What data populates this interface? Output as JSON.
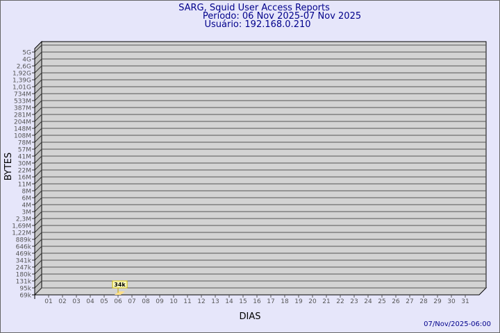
{
  "chart_data": {
    "type": "bar",
    "title": "SARG, Squid User Access Reports",
    "subtitle_period": "Período: 06 Nov 2025-07 Nov 2025",
    "subtitle_user": "Usuário: 192.168.0.210",
    "xlabel": "DIAS",
    "ylabel": "BYTES",
    "footer": "07/Nov/2025-06:00",
    "y_scale": "log",
    "y_ticks": [
      "5G",
      "4G",
      "2,6G",
      "1,92G",
      "1,39G",
      "1,01G",
      "734M",
      "533M",
      "387M",
      "281M",
      "204M",
      "148M",
      "108M",
      "78M",
      "57M",
      "41M",
      "30M",
      "22M",
      "16M",
      "11M",
      "8M",
      "6M",
      "4M",
      "3M",
      "2,3M",
      "1,69M",
      "1,22M",
      "889k",
      "646k",
      "469k",
      "341k",
      "247k",
      "180k",
      "131k",
      "95k",
      "69k"
    ],
    "categories": [
      "01",
      "02",
      "03",
      "04",
      "05",
      "06",
      "07",
      "08",
      "09",
      "10",
      "11",
      "12",
      "13",
      "14",
      "15",
      "16",
      "17",
      "18",
      "19",
      "20",
      "21",
      "22",
      "23",
      "24",
      "25",
      "26",
      "27",
      "28",
      "29",
      "30",
      "31"
    ],
    "bars": [
      {
        "x": "06",
        "value": "34k"
      }
    ],
    "grid": true,
    "colors": {
      "text": "#00008b",
      "tick": "#555555",
      "wall": "#d3d3d3",
      "side": "#c0c0c0",
      "bar": "#ffe08a",
      "label_bg": "#ffffc0",
      "label_border": "#c8b400"
    }
  }
}
